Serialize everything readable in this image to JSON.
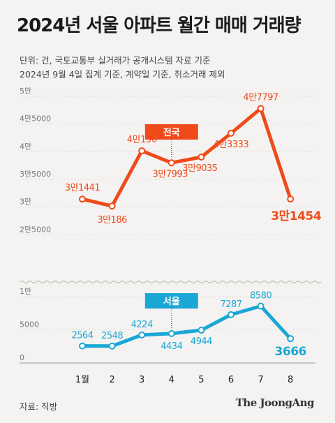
{
  "header": {
    "title": "2024년 서울 아파트 월간 매매 거래량",
    "note_line1": "단위: 건, 국토교통부 실거래가 공개시스템 자료 기준",
    "note_line2": "2024년 9월 4일 집계 기준, 계약일 기준, 취소거래 제외"
  },
  "footer": {
    "source": "자료: 직방",
    "brand": "The JoongAng"
  },
  "chart_data": {
    "type": "line",
    "categories": [
      "1월",
      "2",
      "3",
      "4",
      "5",
      "6",
      "7",
      "8"
    ],
    "axis_break": true,
    "grid": false,
    "upper_axis": {
      "ylim": [
        20000,
        50000
      ],
      "ticks": [
        50000,
        45000,
        40000,
        35000,
        30000,
        25000
      ],
      "tick_labels": [
        "5만",
        "4만5000",
        "4만",
        "3만5000",
        "3만",
        "2만5000"
      ]
    },
    "lower_axis": {
      "ylim": [
        0,
        10000
      ],
      "ticks": [
        10000,
        5000,
        0
      ],
      "tick_labels": [
        "1만",
        "5000",
        "0"
      ]
    },
    "series": [
      {
        "name": "전국",
        "color": "#f04a1a",
        "axis": "upper",
        "values": [
          31441,
          30186,
          40156,
          37993,
          39035,
          43333,
          47797,
          31454
        ],
        "labels": [
          "3만1441",
          "3만186",
          "4만156",
          "3만7993",
          "3만9035",
          "4만3333",
          "4만7797",
          "3만1454"
        ]
      },
      {
        "name": "서울",
        "color": "#1aa7d6",
        "axis": "lower",
        "values": [
          2564,
          2548,
          4224,
          4434,
          4944,
          7287,
          8580,
          3666
        ],
        "labels": [
          "2564",
          "2548",
          "4224",
          "4434",
          "4944",
          "7287",
          "8580",
          "3666"
        ]
      }
    ]
  }
}
